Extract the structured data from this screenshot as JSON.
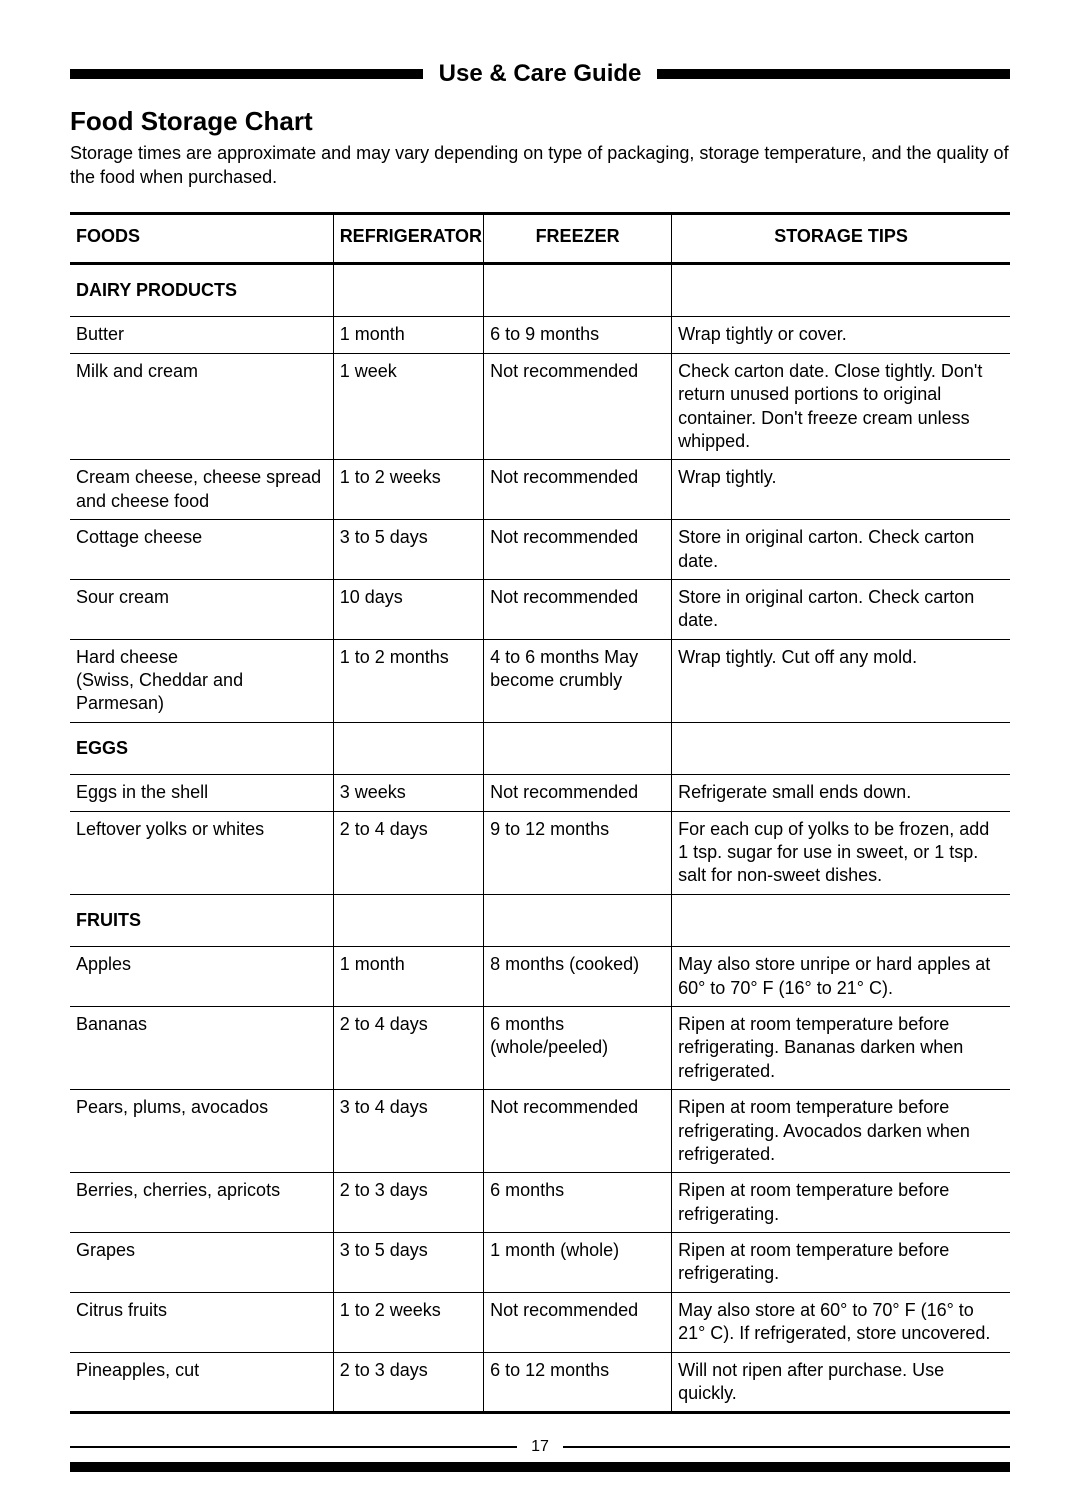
{
  "header": {
    "title": "Use & Care Guide"
  },
  "title": "Food Storage Chart",
  "intro": "Storage times are approximate and may vary depending on type of packaging, storage temperature, and the quality of the food when purchased.",
  "columns": {
    "food": "FOODS",
    "refrigerator": "REFRIGERATOR",
    "freezer": "FREEZER",
    "tips": "STORAGE TIPS"
  },
  "sections": {
    "dairy": "DAIRY PRODUCTS",
    "eggs": "EGGS",
    "fruits": "FRUITS"
  },
  "rows": {
    "butter": {
      "food": "Butter",
      "ref": "1 month",
      "frz": "6 to 9 months",
      "tips": "Wrap tightly or cover."
    },
    "milk": {
      "food": "Milk and cream",
      "ref": "1 week",
      "frz": "Not recommended",
      "tips": "Check carton date. Close tightly. Don't return unused portions to original container. Don't freeze cream unless whipped."
    },
    "creamcheese": {
      "food": "Cream cheese, cheese spread and cheese food",
      "ref": "1 to 2 weeks",
      "frz": "Not recommended",
      "tips": "Wrap tightly."
    },
    "cottage": {
      "food": "Cottage cheese",
      "ref": "3 to 5 days",
      "frz": "Not recommended",
      "tips": "Store in original carton. Check carton date."
    },
    "sourcream": {
      "food": "Sour cream",
      "ref": "10 days",
      "frz": "Not recommended",
      "tips": "Store in original carton. Check carton date."
    },
    "hardcheese": {
      "food": "Hard cheese\n(Swiss, Cheddar and Parmesan)",
      "ref": "1 to 2 months",
      "frz": "4 to 6 months May become crumbly",
      "tips": "Wrap tightly. Cut off any mold."
    },
    "eggsshell": {
      "food": "Eggs in the shell",
      "ref": "3 weeks",
      "frz": "Not recommended",
      "tips": "Refrigerate small ends down."
    },
    "eggsleft": {
      "food": "Leftover yolks or whites",
      "ref": "2 to 4 days",
      "frz": "9 to 12 months",
      "tips": "For each cup of yolks to be frozen, add 1 tsp. sugar for use in sweet, or 1 tsp. salt for non-sweet dishes."
    },
    "apples": {
      "food": "Apples",
      "ref": "1 month",
      "frz": "8 months (cooked)",
      "tips": "May also store unripe or hard apples at 60° to 70° F (16° to 21° C)."
    },
    "bananas": {
      "food": "Bananas",
      "ref": "2 to 4 days",
      "frz": "6 months (whole/peeled)",
      "tips": "Ripen at room temperature before refrigerating. Bananas darken when refrigerated."
    },
    "pears": {
      "food": "Pears, plums, avocados",
      "ref": "3 to 4 days",
      "frz": "Not recommended",
      "tips": "Ripen at room temperature before refrigerating. Avocados darken when refrigerated."
    },
    "berries": {
      "food": "Berries, cherries, apricots",
      "ref": "2 to 3 days",
      "frz": "6 months",
      "tips": "Ripen at room temperature before refrigerating."
    },
    "grapes": {
      "food": "Grapes",
      "ref": "3 to 5 days",
      "frz": "1 month (whole)",
      "tips": "Ripen at room temperature before refrigerating."
    },
    "citrus": {
      "food": "Citrus fruits",
      "ref": "1 to 2 weeks",
      "frz": "Not recommended",
      "tips": "May also store at 60° to 70° F (16° to 21° C). If refrigerated, store uncovered."
    },
    "pineapples": {
      "food": "Pineapples, cut",
      "ref": "2 to 3 days",
      "frz": "6 to 12 months",
      "tips": "Will not ripen after purchase. Use quickly."
    }
  },
  "pageNumber": "17"
}
